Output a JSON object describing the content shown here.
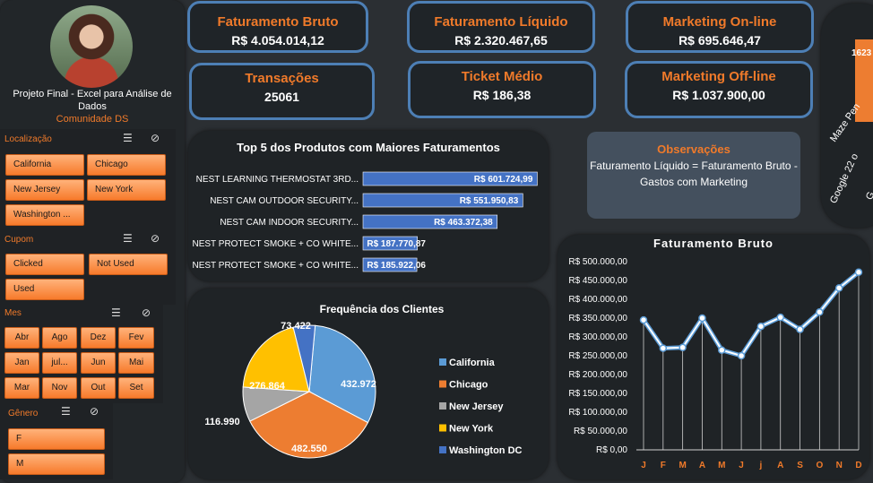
{
  "profile": {
    "name": "Projeto Final - Excel para Análise de Dados",
    "community": "Comunidade DS"
  },
  "slicers": {
    "localizacao": {
      "title": "Localização",
      "items": [
        "California",
        "Chicago",
        "New Jersey",
        "New York",
        "Washington ..."
      ]
    },
    "cupom": {
      "title": "Cupom",
      "items": [
        "Clicked",
        "Not Used",
        "Used"
      ]
    },
    "mes": {
      "title": "Mes",
      "items": [
        "Abr",
        "Ago",
        "Dez",
        "Fev",
        "Jan",
        "jul...",
        "Jun",
        "Mai",
        "Mar",
        "Nov",
        "Out",
        "Set"
      ]
    },
    "genero": {
      "title": "Gênero",
      "items": [
        "F",
        "M"
      ]
    }
  },
  "kpis": [
    {
      "title": "Faturamento Bruto",
      "value": "R$ 4.054.014,12"
    },
    {
      "title": "Faturamento Líquido",
      "value": "R$ 2.320.467,65"
    },
    {
      "title": "Marketing On-line",
      "value": "R$ 695.646,47"
    },
    {
      "title": "Transações",
      "value": "25061"
    },
    {
      "title": "Ticket Médio",
      "value": "R$ 186,38"
    },
    {
      "title": "Marketing Off-line",
      "value": "R$ 1.037.900,00"
    }
  ],
  "observacoes": {
    "title": "Observações",
    "body": "Faturamento Líquido = Faturamento Bruto - Gastos com Marketing"
  },
  "colors": {
    "accent": "#f07a2a",
    "card_border": "#4d7fb5",
    "bar": "#4472c4"
  },
  "chart_data": [
    {
      "type": "bar",
      "title": "Top 5 dos Produtos com Maiores Faturamentos",
      "categories": [
        "NEST LEARNING THERMOSTAT 3RD...",
        "NEST CAM OUTDOOR SECURITY...",
        "NEST CAM INDOOR SECURITY...",
        "NEST PROTECT SMOKE + CO WHITE...",
        "NEST PROTECT SMOKE + CO WHITE..."
      ],
      "values": [
        601724.99,
        551950.83,
        463372.38,
        187770.87,
        185922.06
      ],
      "labels": [
        "R$ 601.724,99",
        "R$ 551.950,83",
        "R$ 463.372,38",
        "R$ 187.770,87",
        "R$ 185.922,06"
      ]
    },
    {
      "type": "pie",
      "title": "Frequência dos Clientes",
      "categories": [
        "California",
        "Chicago",
        "New Jersey",
        "New York",
        "Washington DC"
      ],
      "values": [
        432972,
        482550,
        116990,
        276864,
        73422
      ],
      "labels": [
        "432.972",
        "482.550",
        "116.990",
        "276.864",
        "73.422"
      ],
      "colors": [
        "#5b9bd5",
        "#ed7d31",
        "#a5a5a5",
        "#ffc000",
        "#4472c4"
      ],
      "legend": "right"
    },
    {
      "type": "line",
      "title": "Faturamento Bruto",
      "categories": [
        "J",
        "F",
        "M",
        "A",
        "M",
        "J",
        "j",
        "A",
        "S",
        "O",
        "N",
        "D"
      ],
      "values": [
        345000,
        270000,
        272000,
        350000,
        265000,
        250000,
        328000,
        352000,
        320000,
        366000,
        430000,
        472000
      ],
      "ylim": [
        0,
        500000
      ],
      "yticks": [
        "R$ 0,00",
        "R$ 50.000,00",
        "R$ 100.000,00",
        "R$ 150.000,00",
        "R$ 200.000,00",
        "R$ 250.000,00",
        "R$ 300.000,00",
        "R$ 350.000,00",
        "R$ 400.000,00",
        "R$ 450.000,00",
        "R$ 500.000,00"
      ]
    },
    {
      "type": "bar",
      "partial": true,
      "value_label": "1623",
      "categories": [
        "Maze Pen",
        "Google 22 o",
        "G"
      ]
    }
  ]
}
